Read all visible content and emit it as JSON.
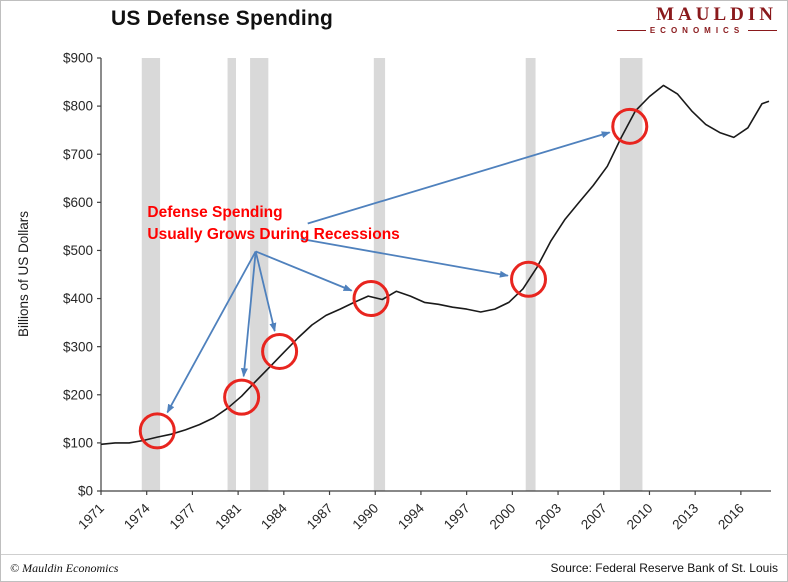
{
  "header": {
    "title": "US Defense Spending",
    "logo_line1": "MAULDIN",
    "logo_line2": "ECONOMICS"
  },
  "footer": {
    "copyright": "© Mauldin Economics",
    "source": "Source: Federal Reserve Bank of St. Louis"
  },
  "chart_data": {
    "type": "line",
    "title": "US Defense Spending",
    "ylabel": "Billions of US Dollars",
    "ylim": [
      0,
      900
    ],
    "x_range": [
      1971,
      2018.5
    ],
    "grid": false,
    "legend": false,
    "y_tick_values": [
      0,
      100,
      200,
      300,
      400,
      500,
      600,
      700,
      800,
      900
    ],
    "y_tick_labels": [
      "$0",
      "$100",
      "$200",
      "$300",
      "$400",
      "$500",
      "$600",
      "$700",
      "$800",
      "$900"
    ],
    "x_tick_years": [
      1971,
      1974.25,
      1977.5,
      1980.75,
      1984,
      1987.25,
      1990.5,
      1993.75,
      1997,
      2000.25,
      2003.5,
      2006.75,
      2010,
      2013.25,
      2016.5
    ],
    "x_tick_labels": [
      "1971",
      "1974",
      "1977",
      "1981",
      "1984",
      "1987",
      "1990",
      "1994",
      "1997",
      "2000",
      "2003",
      "2007",
      "2010",
      "2013",
      "2016"
    ],
    "series": [
      {
        "name": "US Defense Spending",
        "x": [
          1971,
          1972,
          1973,
          1974,
          1975,
          1976,
          1977,
          1978,
          1979,
          1980,
          1981,
          1982,
          1983,
          1984,
          1985,
          1986,
          1987,
          1988,
          1989,
          1990,
          1991,
          1992,
          1993,
          1994,
          1995,
          1996,
          1997,
          1998,
          1999,
          2000,
          2001,
          2002,
          2003,
          2004,
          2005,
          2006,
          2007,
          2008,
          2009,
          2010,
          2011,
          2012,
          2013,
          2014,
          2015,
          2016,
          2017,
          2018,
          2018.5
        ],
        "values": [
          97,
          100,
          100,
          105,
          112,
          118,
          127,
          138,
          152,
          172,
          197,
          228,
          258,
          288,
          318,
          345,
          365,
          378,
          392,
          405,
          398,
          415,
          405,
          392,
          388,
          382,
          378,
          372,
          378,
          392,
          420,
          465,
          520,
          565,
          600,
          635,
          675,
          735,
          790,
          820,
          843,
          825,
          790,
          762,
          745,
          735,
          755,
          805,
          810
        ]
      }
    ],
    "recession_bands": [
      [
        1973.9,
        1975.2
      ],
      [
        1980.0,
        1980.6
      ],
      [
        1981.6,
        1982.9
      ],
      [
        1990.4,
        1991.2
      ],
      [
        2001.2,
        2001.9
      ],
      [
        2007.9,
        2009.5
      ]
    ],
    "highlight_circles": [
      [
        1975.0,
        125
      ],
      [
        1981.0,
        195
      ],
      [
        1983.7,
        290
      ],
      [
        1990.2,
        400
      ],
      [
        2001.4,
        440
      ],
      [
        2008.6,
        758
      ]
    ],
    "annotation": {
      "lines": [
        "Defense Spending",
        "Usually Grows During Recessions"
      ],
      "x_year": 1974.3,
      "y_value": 570
    },
    "arrows": [
      {
        "from": [
          1982.0,
          498
        ],
        "to_circle": 0
      },
      {
        "from": [
          1982.0,
          498
        ],
        "to_circle": 1
      },
      {
        "from": [
          1982.0,
          498
        ],
        "to_circle": 2
      },
      {
        "from": [
          1982.0,
          498
        ],
        "to_circle": 3
      },
      {
        "from": [
          1985.2,
          524
        ],
        "to_circle": 4
      },
      {
        "from": [
          1985.7,
          556
        ],
        "to_circle": 5
      }
    ],
    "colors": {
      "line": "#1a1a1a",
      "recession_band": "#d9d9d9",
      "circle": "#e8251f",
      "arrow": "#4f81bd",
      "annotation": "#ff0000",
      "axis": "#404040",
      "tick_text": "#262626"
    }
  }
}
